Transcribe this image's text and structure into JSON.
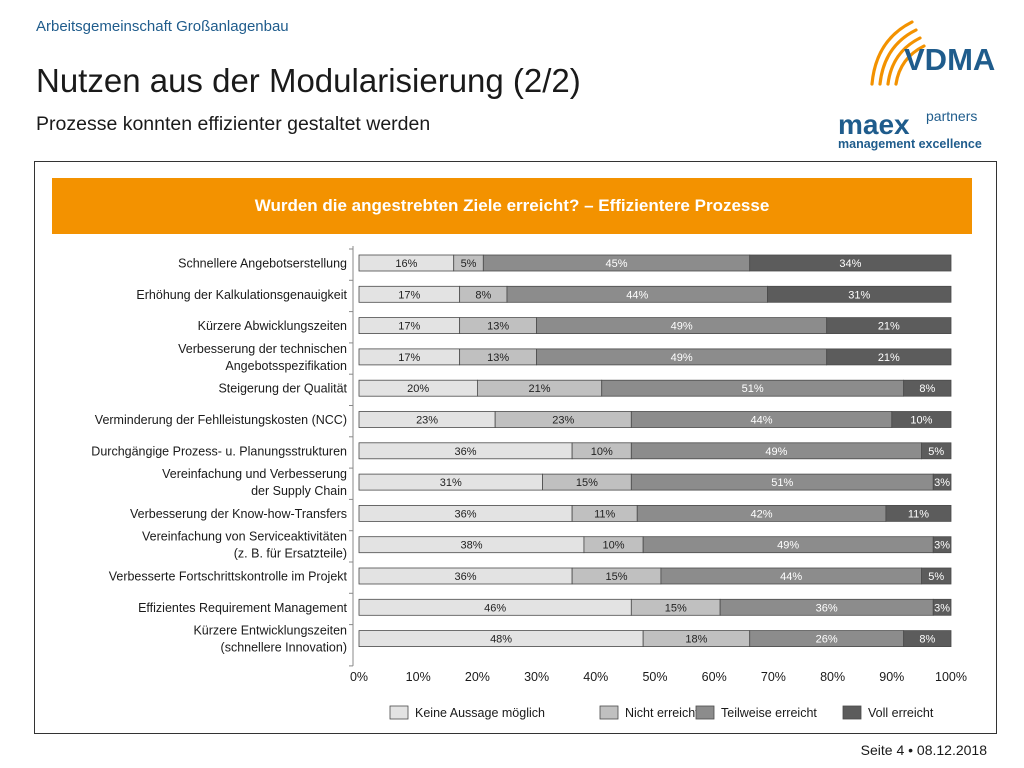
{
  "header": {
    "kicker": "Arbeitsgemeinschaft Großanlagenbau",
    "title": "Nutzen aus der Modularisierung (2/2)",
    "subtitle": "Prozesse konnten effizienter gestaltet werden"
  },
  "logos": {
    "vdma": "VDMA",
    "maex": "maex",
    "maex_sup": "partners",
    "maex_tagline": "management excellence"
  },
  "footer": {
    "page": "Seite 4 • 08.12.2018"
  },
  "colors": {
    "orange": "#f39200",
    "keine": "#e3e3e3",
    "nicht": "#c0c0c0",
    "teilweise": "#8c8c8c",
    "voll": "#5c5c5c",
    "brand_blue": "#1f5c8c"
  },
  "chart_data": {
    "type": "bar",
    "orientation": "horizontal",
    "stacked": true,
    "title": "Wurden die angestrebten Ziele erreicht? – Effizientere Prozesse",
    "categories": [
      "Schnellere Angebotserstellung",
      "Erhöhung der Kalkulationsgenauigkeit",
      "Kürzere Abwicklungszeiten",
      "Verbesserung der technischen\nAngebotsspezifikation",
      "Steigerung der Qualität",
      "Verminderung der Fehlleistungskosten (NCC)",
      "Durchgängige Prozess- u. Planungsstrukturen",
      "Vereinfachung und Verbesserung\nder Supply Chain",
      "Verbesserung der Know-how-Transfers",
      "Vereinfachung von Serviceaktivitäten\n(z. B. für Ersatzteile)",
      "Verbesserte Fortschrittskontrolle im Projekt",
      "Effizientes Requirement Management",
      "Kürzere Entwicklungszeiten\n(schnellere Innovation)"
    ],
    "series": [
      {
        "name": "Keine Aussage möglich",
        "color": "#e3e3e3",
        "label_color": "#222222",
        "values": [
          16,
          17,
          17,
          17,
          20,
          23,
          36,
          31,
          36,
          38,
          36,
          46,
          48
        ]
      },
      {
        "name": "Nicht erreicht",
        "color": "#c0c0c0",
        "label_color": "#222222",
        "values": [
          5,
          8,
          13,
          13,
          21,
          23,
          10,
          15,
          11,
          10,
          15,
          15,
          18
        ]
      },
      {
        "name": "Teilweise erreicht",
        "color": "#8c8c8c",
        "label_color": "#ffffff",
        "values": [
          45,
          44,
          49,
          49,
          51,
          44,
          49,
          51,
          42,
          49,
          44,
          36,
          26
        ]
      },
      {
        "name": "Voll erreicht",
        "color": "#5c5c5c",
        "label_color": "#ffffff",
        "values": [
          34,
          31,
          21,
          21,
          8,
          10,
          5,
          3,
          11,
          3,
          5,
          3,
          8
        ]
      }
    ],
    "value_suffix": "%",
    "xlim": [
      0,
      100
    ],
    "xticks": [
      0,
      10,
      20,
      30,
      40,
      50,
      60,
      70,
      80,
      90,
      100
    ],
    "tick_suffix": "%",
    "grid": false,
    "legend_position": "bottom"
  }
}
